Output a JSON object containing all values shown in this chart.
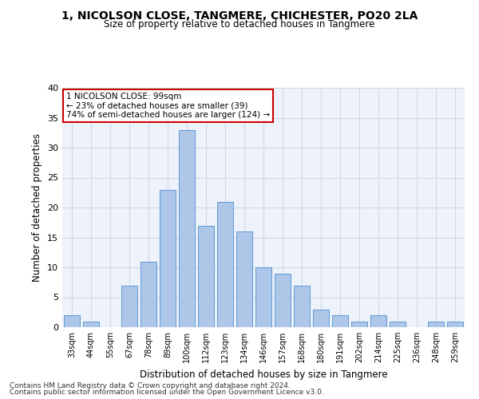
{
  "title1": "1, NICOLSON CLOSE, TANGMERE, CHICHESTER, PO20 2LA",
  "title2": "Size of property relative to detached houses in Tangmere",
  "xlabel": "Distribution of detached houses by size in Tangmere",
  "ylabel": "Number of detached properties",
  "bar_labels": [
    "33sqm",
    "44sqm",
    "55sqm",
    "67sqm",
    "78sqm",
    "89sqm",
    "100sqm",
    "112sqm",
    "123sqm",
    "134sqm",
    "146sqm",
    "157sqm",
    "168sqm",
    "180sqm",
    "191sqm",
    "202sqm",
    "214sqm",
    "225sqm",
    "236sqm",
    "248sqm",
    "259sqm"
  ],
  "bar_values": [
    2,
    1,
    0,
    7,
    11,
    23,
    33,
    17,
    21,
    16,
    10,
    9,
    7,
    3,
    2,
    1,
    2,
    1,
    0,
    1,
    1
  ],
  "bar_color": "#aec6e8",
  "bar_edge_color": "#5b9bd5",
  "annotation_line1": "1 NICOLSON CLOSE: 99sqm",
  "annotation_line2": "← 23% of detached houses are smaller (39)",
  "annotation_line3": "74% of semi-detached houses are larger (124) →",
  "annotation_box_color": "#ffffff",
  "annotation_box_edge": "#cc0000",
  "ylim": [
    0,
    40
  ],
  "yticks": [
    0,
    5,
    10,
    15,
    20,
    25,
    30,
    35,
    40
  ],
  "grid_color": "#d0d8e8",
  "bg_color": "#eef2fa",
  "footer1": "Contains HM Land Registry data © Crown copyright and database right 2024.",
  "footer2": "Contains public sector information licensed under the Open Government Licence v3.0."
}
